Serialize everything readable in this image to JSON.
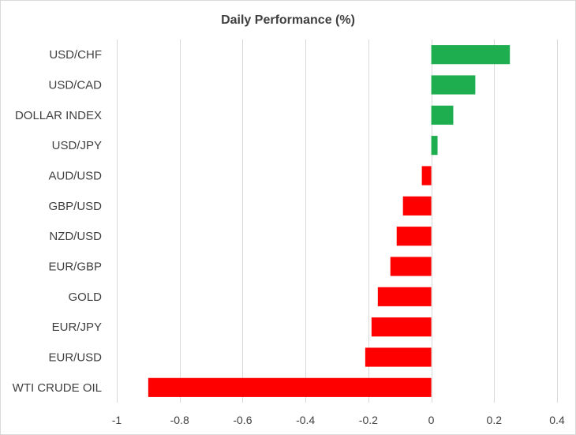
{
  "chart_data": {
    "type": "bar",
    "orientation": "horizontal",
    "title": "Daily Performance (%)",
    "xlabel": "",
    "ylabel": "",
    "categories": [
      "USD/CHF",
      "USD/CAD",
      "DOLLAR INDEX",
      "USD/JPY",
      "AUD/USD",
      "GBP/USD",
      "NZD/USD",
      "EUR/GBP",
      "GOLD",
      "EUR/JPY",
      "EUR/USD",
      "WTI CRUDE OIL"
    ],
    "values": [
      0.25,
      0.14,
      0.07,
      0.02,
      -0.03,
      -0.09,
      -0.11,
      -0.13,
      -0.17,
      -0.19,
      -0.21,
      -0.9
    ],
    "xlim": [
      -1,
      0.4
    ],
    "xticks": [
      -1,
      -0.8,
      -0.6,
      -0.4,
      -0.2,
      0,
      0.2,
      0.4
    ],
    "xtick_labels": [
      "-1",
      "-0.8",
      "-0.6",
      "-0.4",
      "-0.2",
      "0",
      "0.2",
      "0.4"
    ],
    "grid": "vertical",
    "legend": "none",
    "colors": {
      "positive": "#1fae4f",
      "negative": "#ff0000"
    }
  }
}
